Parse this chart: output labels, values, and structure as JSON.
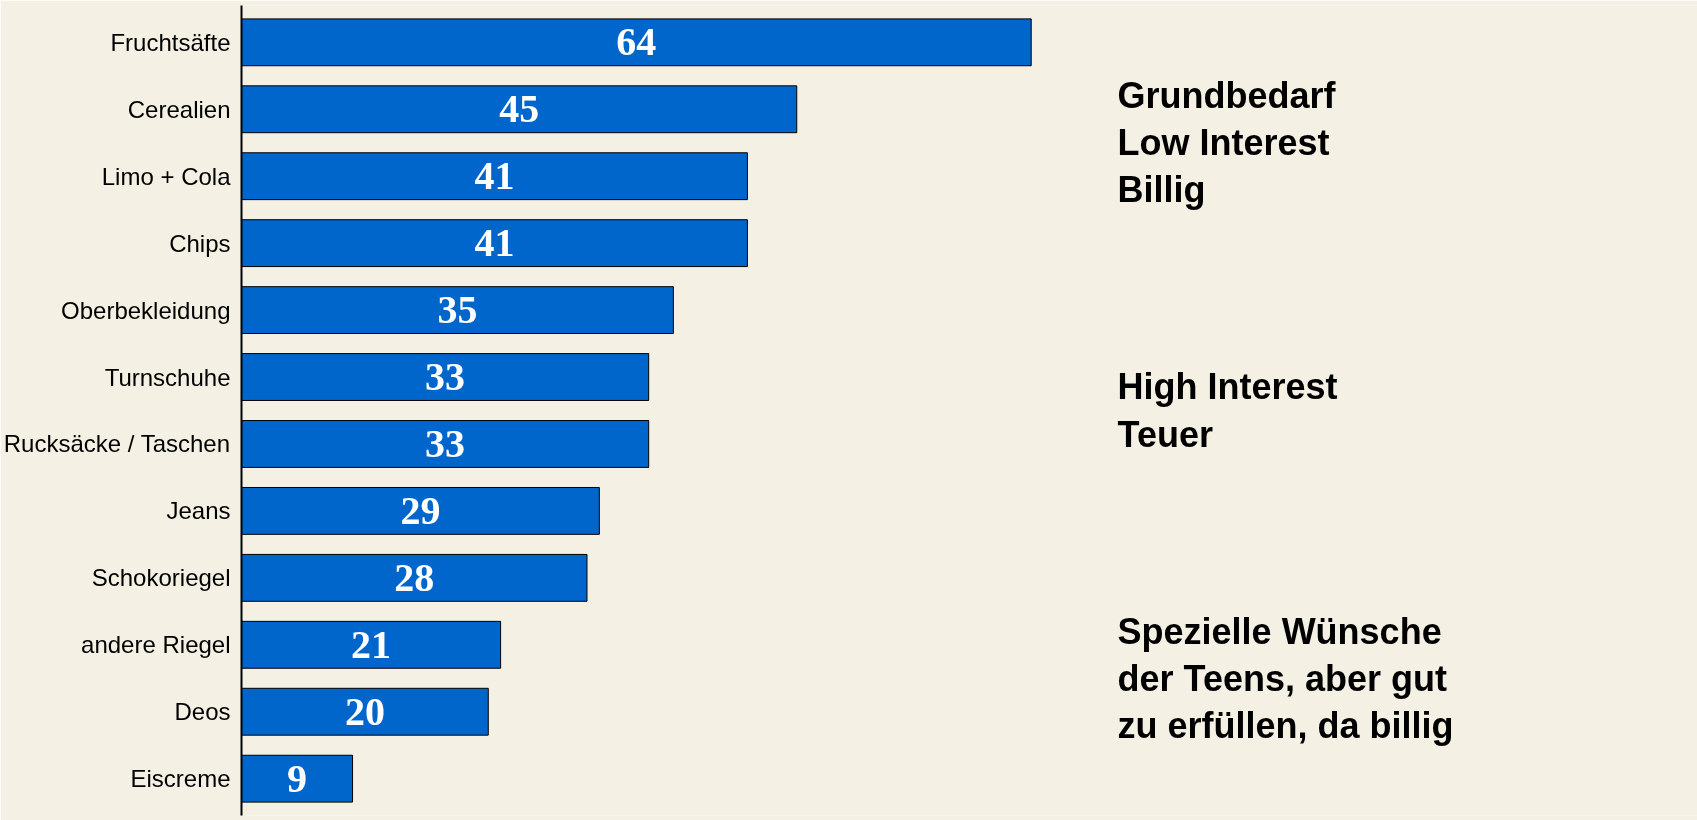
{
  "chart_data": {
    "type": "bar",
    "orientation": "horizontal",
    "categories": [
      "Fruchtsäfte",
      "Cerealien",
      "Limo + Cola",
      "Chips",
      "Oberbekleidung",
      "Turnschuhe",
      "Rucksäcke / Taschen",
      "Jeans",
      "Schokoriegel",
      "andere Riegel",
      "Deos",
      "Eiscreme"
    ],
    "values": [
      64,
      45,
      41,
      41,
      35,
      33,
      33,
      29,
      28,
      21,
      20,
      9
    ],
    "color": "#0066cc",
    "data_labels": true,
    "grid": false,
    "tick_labels": "y",
    "annotations": [
      "Grundbedarf\nLow Interest\nBillig",
      "High Interest\nTeuer",
      "Spezielle Wünsche\nder Teens, aber gut\nzu erfüllen, da billig"
    ]
  }
}
